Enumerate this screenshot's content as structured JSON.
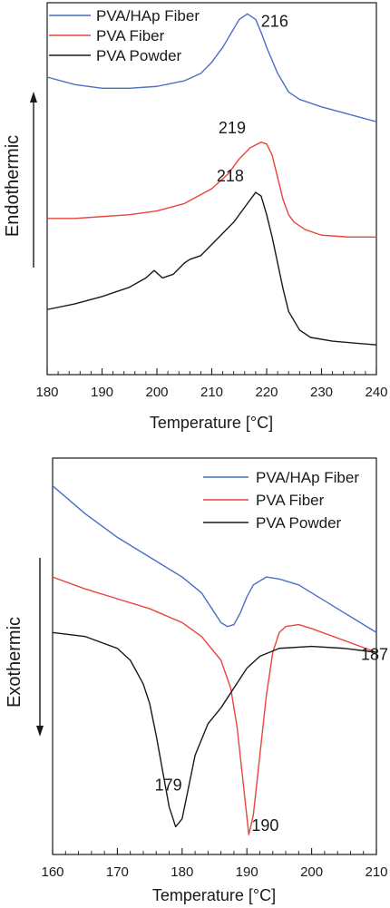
{
  "chart_data": [
    {
      "type": "line",
      "xlabel": "Temperature [°C]",
      "ylabel": "Endothermic",
      "xlim": [
        180,
        240
      ],
      "xticks": [
        180,
        190,
        200,
        210,
        220,
        230,
        240
      ],
      "legend_position": "top-left",
      "y_ticks_shown": false,
      "series": [
        {
          "name": "PVA/HAp Fiber",
          "color": "#4a6fc4",
          "peak_label": "216",
          "x": [
            180,
            185,
            190,
            195,
            200,
            205,
            208,
            210,
            212,
            214,
            215,
            216.5,
            218,
            219,
            220,
            222,
            224,
            226,
            228,
            230,
            235,
            240
          ],
          "y": [
            0.8,
            0.78,
            0.77,
            0.77,
            0.775,
            0.79,
            0.81,
            0.84,
            0.88,
            0.93,
            0.955,
            0.97,
            0.955,
            0.92,
            0.88,
            0.81,
            0.76,
            0.74,
            0.73,
            0.72,
            0.7,
            0.68
          ]
        },
        {
          "name": "PVA Fiber",
          "color": "#e8453c",
          "peak_label": "219",
          "x": [
            180,
            185,
            190,
            195,
            200,
            205,
            210,
            213,
            215,
            217,
            219,
            220,
            221,
            222,
            223,
            224,
            225,
            227,
            230,
            235,
            240
          ],
          "y": [
            0.42,
            0.42,
            0.425,
            0.43,
            0.44,
            0.46,
            0.5,
            0.54,
            0.58,
            0.61,
            0.625,
            0.62,
            0.59,
            0.53,
            0.47,
            0.43,
            0.41,
            0.39,
            0.375,
            0.37,
            0.37
          ]
        },
        {
          "name": "PVA Powder",
          "color": "#1a1a1a",
          "peak_label": "218",
          "x": [
            180,
            185,
            190,
            195,
            198,
            199.5,
            201,
            203,
            205,
            206,
            208,
            210,
            212,
            214,
            216,
            218,
            219,
            220,
            221,
            222,
            223,
            224,
            226,
            228,
            232,
            236,
            240
          ],
          "y": [
            0.175,
            0.19,
            0.21,
            0.235,
            0.26,
            0.28,
            0.26,
            0.27,
            0.3,
            0.31,
            0.32,
            0.35,
            0.38,
            0.41,
            0.45,
            0.49,
            0.48,
            0.43,
            0.37,
            0.3,
            0.23,
            0.17,
            0.12,
            0.1,
            0.09,
            0.085,
            0.08
          ]
        }
      ]
    },
    {
      "type": "line",
      "xlabel": "Temperature [°C]",
      "ylabel": "Exothermic",
      "xlim": [
        160,
        210
      ],
      "xticks": [
        160,
        170,
        180,
        190,
        200,
        210
      ],
      "legend_position": "top-right",
      "y_ticks_shown": false,
      "series": [
        {
          "name": "PVA/HAp Fiber",
          "color": "#4a6fc4",
          "peak_label": "187",
          "x": [
            160,
            165,
            170,
            175,
            180,
            183,
            185,
            186,
            187,
            188,
            189,
            190,
            191,
            193,
            195,
            198,
            201,
            205,
            210
          ],
          "y": [
            0.93,
            0.86,
            0.8,
            0.75,
            0.7,
            0.66,
            0.61,
            0.585,
            0.575,
            0.58,
            0.61,
            0.65,
            0.68,
            0.7,
            0.695,
            0.68,
            0.65,
            0.61,
            0.56
          ]
        },
        {
          "name": "PVA Fiber",
          "color": "#e8453c",
          "peak_label": "190",
          "x": [
            160,
            165,
            170,
            175,
            180,
            183,
            186,
            187.5,
            188.5,
            189.5,
            190.3,
            191,
            192,
            193,
            194,
            195,
            196,
            198,
            200,
            205,
            210
          ],
          "y": [
            0.7,
            0.67,
            0.645,
            0.62,
            0.585,
            0.55,
            0.49,
            0.42,
            0.32,
            0.17,
            0.05,
            0.1,
            0.25,
            0.4,
            0.51,
            0.56,
            0.575,
            0.58,
            0.57,
            0.54,
            0.51
          ]
        },
        {
          "name": "PVA Powder",
          "color": "#1a1a1a",
          "peak_label": "179",
          "x": [
            160,
            165,
            170,
            172,
            174,
            175,
            176,
            177,
            178,
            179,
            180,
            181,
            182,
            184,
            186,
            188,
            190,
            192,
            195,
            200,
            205,
            210
          ],
          "y": [
            0.56,
            0.55,
            0.52,
            0.49,
            0.43,
            0.38,
            0.3,
            0.21,
            0.12,
            0.07,
            0.09,
            0.17,
            0.25,
            0.33,
            0.37,
            0.42,
            0.47,
            0.5,
            0.52,
            0.525,
            0.52,
            0.51
          ]
        }
      ]
    }
  ]
}
